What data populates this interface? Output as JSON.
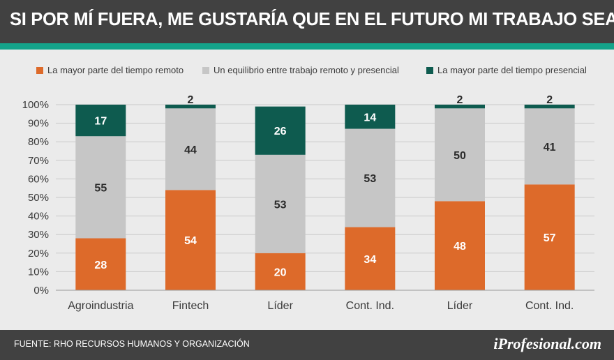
{
  "header": {
    "title": "SI POR MÍ FUERA, ME GUSTARÍA QUE EN EL FUTURO MI TRABAJO SEA..."
  },
  "colors": {
    "remote": "#dd6a2a",
    "balance": "#c6c6c6",
    "presencial": "#0e5b4f",
    "accent": "#14a38a"
  },
  "chart_data": {
    "type": "bar",
    "stacked": true,
    "title": "SI POR MÍ FUERA, ME GUSTARÍA QUE EN EL FUTURO MI TRABAJO SEA...",
    "categories": [
      "Agroindustria",
      "Fintech",
      "Líder",
      "Cont. Ind.",
      "Líder",
      "Cont. Ind."
    ],
    "series": [
      {
        "name": "La mayor parte del tiempo remoto",
        "values": [
          28,
          54,
          20,
          34,
          48,
          57
        ]
      },
      {
        "name": "Un equilibrio entre trabajo remoto y presencial",
        "values": [
          55,
          44,
          53,
          53,
          50,
          41
        ]
      },
      {
        "name": "La mayor parte del tiempo presencial",
        "values": [
          17,
          2,
          26,
          14,
          2,
          2
        ]
      }
    ],
    "ylim": [
      0,
      100
    ],
    "yticks": [
      "0%",
      "10%",
      "20%",
      "30%",
      "40%",
      "50%",
      "60%",
      "70%",
      "80%",
      "90%",
      "100%"
    ],
    "xlabel": "",
    "ylabel": "",
    "legend": "top",
    "grid": true
  },
  "footer": {
    "source": "FUENTE: RHO RECURSOS HUMANOS Y ORGANIZACIÓN",
    "brand": "iProfesional.com"
  }
}
